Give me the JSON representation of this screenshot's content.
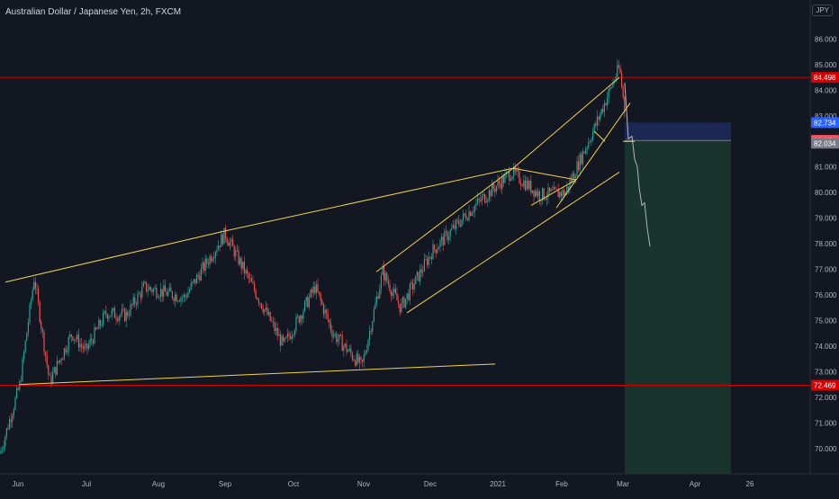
{
  "header": {
    "title": "Australian Dollar / Japanese Yen, 2h, FXCM",
    "currency_badge": "JPY"
  },
  "chart_data": {
    "type": "candlestick",
    "title": "Australian Dollar / Japanese Yen, 2h, FXCM",
    "symbol": "AUDJPY",
    "timeframe": "2h",
    "source": "FXCM",
    "ylim": [
      69.0,
      86.8
    ],
    "y_ticks": [
      "70.000",
      "71.000",
      "72.000",
      "73.000",
      "74.000",
      "75.000",
      "76.000",
      "77.000",
      "78.000",
      "79.000",
      "80.000",
      "81.000",
      "83.000",
      "84.000",
      "85.000",
      "86.000"
    ],
    "x_ticks": [
      "Jun",
      "Jul",
      "Aug",
      "Sep",
      "Oct",
      "Nov",
      "Dec",
      "2021",
      "Feb",
      "Mar",
      "Apr",
      "26"
    ],
    "price_path": [
      [
        "May",
        69.8
      ],
      [
        "Jun",
        72.5
      ],
      [
        "Jun",
        76.7
      ],
      [
        "Jun",
        72.6
      ],
      [
        "Jul",
        74.5
      ],
      [
        "Jul",
        73.8
      ],
      [
        "Jul",
        75.3
      ],
      [
        "Aug",
        75.2
      ],
      [
        "Aug",
        76.3
      ],
      [
        "Aug",
        75.9
      ],
      [
        "Sep",
        78.4
      ],
      [
        "Sep",
        76.7
      ],
      [
        "Oct",
        74.0
      ],
      [
        "Oct",
        76.3
      ],
      [
        "Oct",
        74.5
      ],
      [
        "Nov",
        73.2
      ],
      [
        "Nov",
        76.9
      ],
      [
        "Nov",
        75.5
      ],
      [
        "Dec",
        77.7
      ],
      [
        "Dec",
        79.4
      ],
      [
        "2021",
        80.8
      ],
      [
        "2021",
        79.9
      ],
      [
        "Feb",
        80.0
      ],
      [
        "Feb",
        82.5
      ],
      [
        "Feb",
        84.9
      ],
      [
        "Mar",
        82.1
      ],
      [
        "Mar",
        81.2
      ],
      [
        "Mar",
        79.5
      ],
      [
        "Mar",
        77.9
      ]
    ],
    "price_labels": [
      {
        "value": 84.498,
        "text": "84.498",
        "color": "#d50000"
      },
      {
        "value": 82.734,
        "text": "82.734",
        "color": "#2962ff"
      },
      {
        "value": 82.074,
        "text": "82.074",
        "color": "#f7525f"
      },
      {
        "value": 82.034,
        "text": "82.034",
        "color": "#787b86"
      },
      {
        "value": 72.469,
        "text": "72.469",
        "color": "#d50000"
      }
    ],
    "horizontal_lines": [
      {
        "value": 84.498,
        "color": "#d50000"
      },
      {
        "value": 72.469,
        "color": "#d50000"
      }
    ],
    "position": {
      "kind": "short",
      "entry": 82.034,
      "stop": 82.734,
      "target": 69.0,
      "profit_color": "#1b3a2e",
      "stop_color": "#1e2a5a"
    },
    "colors": {
      "background": "#131722",
      "up": "#26a69a",
      "down": "#ef5350",
      "trendline": "#f0d44a",
      "axis_text": "#b2b5be"
    },
    "grid": false
  }
}
